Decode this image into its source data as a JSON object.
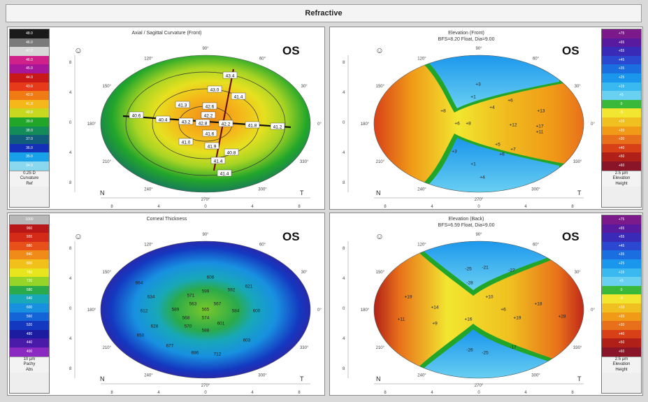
{
  "window": {
    "title": "Refractive"
  },
  "panels": [
    {
      "title": "Axial / Sagittal Curvature (Front)",
      "subtitle": "",
      "eye": "OS",
      "n_label": "N",
      "t_label": "T",
      "scale_side": "left",
      "scale_values": [
        "48.0",
        "46.0",
        "47.0",
        "46.0",
        "45.0",
        "44.0",
        "43.0",
        "42.0",
        "41.0",
        "40.0",
        "39.0",
        "38.0",
        "37.0",
        "36.0",
        "35.0",
        "34.0"
      ],
      "scale_colors": [
        "#1a1a1a",
        "#7a7a7a",
        "#d8d8d8",
        "#d0208a",
        "#a8169a",
        "#c81818",
        "#e63a1a",
        "#f07a14",
        "#f5b81a",
        "#c8d820",
        "#22a62a",
        "#148c5a",
        "#105c7a",
        "#1430b8",
        "#18a0e8",
        "#8ad8f0"
      ],
      "scale_footer": [
        "0.25 D",
        "Curvature",
        "Ref"
      ],
      "readings": [
        "43.4",
        "43.0",
        "42.6",
        "42.2",
        "41.6",
        "41.9",
        "41.4",
        "41.4",
        "40.6",
        "40.4",
        "43.2",
        "42.8",
        "42.2",
        "41.8",
        "41.2",
        "41.4",
        "41.3",
        "40.8",
        "41.0"
      ]
    },
    {
      "title": "Elevation (Front)",
      "subtitle": "BFS=8.20 Float, Dia=9.00",
      "eye": "OS",
      "n_label": "N",
      "t_label": "T",
      "scale_side": "right",
      "scale_values": [
        "+75",
        "+65",
        "+55",
        "+45",
        "+35",
        "+25",
        "+15",
        "+5",
        "0",
        "-5",
        "+10",
        "+20",
        "+30",
        "+40",
        "+50",
        "+60"
      ],
      "scale_colors": [
        "#7c1a8c",
        "#5a1aa0",
        "#3a2ab8",
        "#2a48d0",
        "#1a6ee0",
        "#1a96ec",
        "#3ab8f0",
        "#6ad0f2",
        "#3ab83a",
        "#f2e630",
        "#f0c020",
        "#f09a18",
        "#e8701a",
        "#d84018",
        "#b02018",
        "#8a1428"
      ],
      "scale_footer": [
        "2.5 µm",
        "Elevation",
        "Height"
      ],
      "readings": [
        "+8",
        "+6",
        "+3",
        "+1",
        "+4",
        "+6",
        "+13",
        "+11",
        "+8",
        "+12",
        "+17",
        "+3",
        "+1",
        "+5",
        "+6",
        "+7",
        "+4"
      ]
    },
    {
      "title": "Corneal Thickness",
      "subtitle": "",
      "eye": "OS",
      "n_label": "N",
      "t_label": "T",
      "scale_side": "left",
      "scale_values": [
        "1000",
        "960",
        "920",
        "880",
        "840",
        "800",
        "760",
        "720",
        "680",
        "640",
        "600",
        "560",
        "520",
        "480",
        "440",
        "400"
      ],
      "scale_colors": [
        "#b8b8b8",
        "#b81818",
        "#d42a18",
        "#e8501a",
        "#f08a18",
        "#f2c01a",
        "#e8e41e",
        "#96d42a",
        "#2aaa4a",
        "#18a8b8",
        "#1890e0",
        "#1464d8",
        "#1438c0",
        "#1c1ca0",
        "#4a1aa8",
        "#8a2ac0"
      ],
      "scale_footer": [
        "10 µm",
        "Pachy",
        "Abs"
      ],
      "readings": [
        "565",
        "563",
        "567",
        "574",
        "568",
        "589",
        "584",
        "599",
        "588",
        "571",
        "601",
        "570",
        "606",
        "592",
        "634",
        "612",
        "628",
        "650",
        "664",
        "677",
        "696",
        "712",
        "603",
        "600",
        "621"
      ]
    },
    {
      "title": "Elevation (Back)",
      "subtitle": "BFS=6.59 Float, Dia=9.00",
      "eye": "OS",
      "n_label": "N",
      "t_label": "T",
      "scale_side": "right",
      "scale_values": [
        "+75",
        "+65",
        "+55",
        "+45",
        "+35",
        "+25",
        "+15",
        "+5",
        "0",
        "-5",
        "+10",
        "+20",
        "+30",
        "+40",
        "+50",
        "+60"
      ],
      "scale_colors": [
        "#7c1a8c",
        "#5a1aa0",
        "#3a2ab8",
        "#2a48d0",
        "#1a6ee0",
        "#1a96ec",
        "#3ab8f0",
        "#6ad0f2",
        "#3ab83a",
        "#f2e630",
        "#f0c020",
        "#f09a18",
        "#e8701a",
        "#d84018",
        "#b02018",
        "#8a1428"
      ],
      "scale_footer": [
        "2.5 µm",
        "Elevation",
        "Height"
      ],
      "readings": [
        "-25",
        "-21",
        "-27",
        "-28",
        "+19",
        "+14",
        "+10",
        "+19",
        "+18",
        "+28",
        "+11",
        "+9",
        "+6",
        "+16",
        "-26",
        "-25",
        "-17"
      ]
    }
  ],
  "axis_ticks": {
    "y": [
      "8",
      "4",
      "0",
      "4",
      "8"
    ],
    "x": [
      "8",
      "4",
      "0",
      "4",
      "8"
    ]
  },
  "angle_labels": [
    "90°",
    "60°",
    "30°",
    "0°",
    "330°",
    "300°",
    "270°",
    "240°",
    "210°",
    "180°",
    "150°",
    "120°"
  ]
}
